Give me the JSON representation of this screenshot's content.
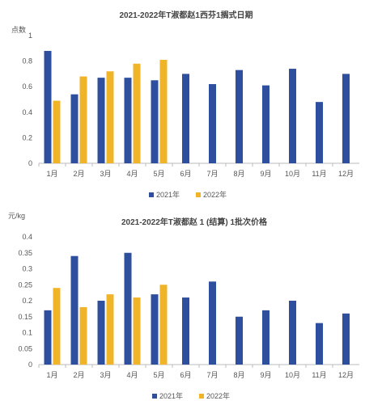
{
  "colors": {
    "series1": "#2e4e9e",
    "series2": "#f0b428"
  },
  "chart_data": [
    {
      "type": "bar",
      "title": "2021-2022年T淑都赵1西芬1搁式日期",
      "ylabel": "点数",
      "categories": [
        "1月",
        "2月",
        "3月",
        "4月",
        "5月",
        "6月",
        "7月",
        "8月",
        "9月",
        "10月",
        "11月",
        "12月"
      ],
      "yticks": [
        "0",
        "0.2",
        "0.4",
        "0.6",
        "0.8",
        "1"
      ],
      "ylim": [
        0,
        1
      ],
      "series": [
        {
          "name": "2021年",
          "values": [
            0.88,
            0.54,
            0.67,
            0.67,
            0.65,
            0.7,
            0.62,
            0.73,
            0.61,
            0.74,
            0.48,
            0.7
          ]
        },
        {
          "name": "2022年",
          "values": [
            0.49,
            0.68,
            0.72,
            0.78,
            0.81,
            null,
            null,
            null,
            null,
            null,
            null,
            null
          ]
        }
      ],
      "legend": "bottom",
      "grid": false
    },
    {
      "type": "bar",
      "title": "2021-2022年T淑都赵 1 (结算) 1批次价格",
      "ylabel": "元/kg",
      "categories": [
        "1月",
        "2月",
        "3月",
        "4月",
        "5月",
        "6月",
        "7月",
        "8月",
        "9月",
        "10月",
        "11月",
        "12月"
      ],
      "yticks": [
        "0",
        "0.05",
        "0.1",
        "0.15",
        "0.2",
        "0.25",
        "0.3",
        "0.35",
        "0.4"
      ],
      "ylim": [
        0,
        0.4
      ],
      "series": [
        {
          "name": "2021年",
          "values": [
            0.17,
            0.34,
            0.2,
            0.35,
            0.22,
            0.21,
            0.26,
            0.15,
            0.17,
            0.2,
            0.13,
            0.16
          ]
        },
        {
          "name": "2022年",
          "values": [
            0.24,
            0.18,
            0.22,
            0.21,
            0.25,
            null,
            null,
            null,
            null,
            null,
            null,
            null
          ]
        }
      ],
      "legend": "bottom",
      "grid": false
    }
  ]
}
